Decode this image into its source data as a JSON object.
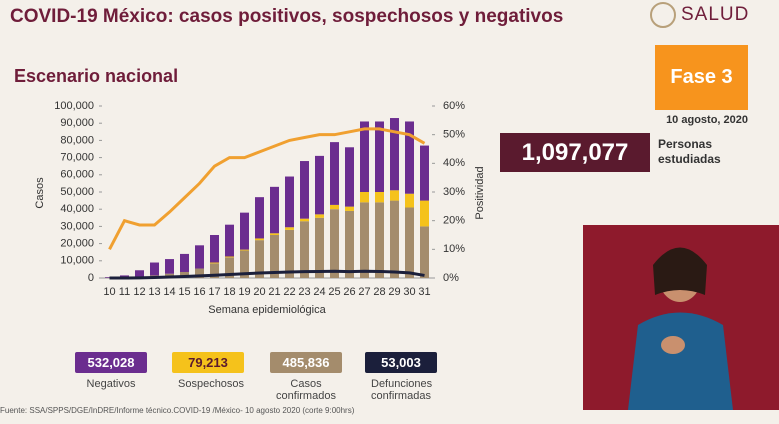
{
  "header": {
    "title": "COVID-19 México: casos positivos, sospechosos y negativos",
    "logo": "SALUD",
    "subtitle": "Escenario nacional",
    "phase": "Fase 3",
    "date": "10 agosto, 2020",
    "people_value": "1,097,077",
    "people_label": "Personas estudiadas",
    "source": "Fuente: SSA/SPPS/DGE/InDRE/Informe técnico.COVID-19 /México- 10 agosto 2020 (corte 9:00hrs)"
  },
  "chart_data": {
    "type": "bar",
    "stacked": true,
    "x_label": "Semana epidemiológica",
    "y_label": "Casos",
    "y2_label": "Positividad",
    "categories": [
      "10",
      "11",
      "12",
      "13",
      "14",
      "15",
      "16",
      "17",
      "18",
      "19",
      "20",
      "21",
      "22",
      "23",
      "24",
      "25",
      "26",
      "27",
      "28",
      "29",
      "30",
      "31"
    ],
    "ylim": [
      0,
      100000
    ],
    "yticks": [
      0,
      {
        "value": 10000,
        "label": "10,000"
      },
      {
        "value": 20000,
        "label": "20,000"
      },
      {
        "value": 30000,
        "label": "30,000"
      },
      {
        "value": 40000,
        "label": "40,000"
      },
      {
        "value": 50000,
        "label": "50,000"
      },
      {
        "value": 60000,
        "label": "60,000"
      },
      {
        "value": 70000,
        "label": "70,000"
      },
      {
        "value": 80000,
        "label": "80,000"
      },
      {
        "value": 90000,
        "label": "90,000"
      },
      {
        "value": 100000,
        "label": "100,000"
      }
    ],
    "y2lim": [
      0,
      60
    ],
    "y2ticks": [
      {
        "value": 0,
        "label": "0%"
      },
      {
        "value": 10,
        "label": "10%"
      },
      {
        "value": 20,
        "label": "20%"
      },
      {
        "value": 30,
        "label": "30%"
      },
      {
        "value": 40,
        "label": "40%"
      },
      {
        "value": 50,
        "label": "50%"
      },
      {
        "value": 60,
        "label": "60%"
      }
    ],
    "series": [
      {
        "name": "Casos confirmados",
        "kind": "bar",
        "color": "#a48c6c",
        "total": 485836,
        "total_label": "485,836",
        "values": [
          100,
          300,
          800,
          1500,
          2500,
          3500,
          5500,
          8500,
          12000,
          16000,
          22000,
          25000,
          28000,
          33000,
          35000,
          40000,
          39000,
          44000,
          44000,
          45000,
          41000,
          30000
        ]
      },
      {
        "name": "Sospechosos",
        "kind": "bar",
        "color": "#f5c21b",
        "total": 79213,
        "total_label": "79,213",
        "values": [
          0,
          0,
          0,
          0,
          0,
          0,
          0,
          500,
          500,
          500,
          1000,
          1000,
          1500,
          1500,
          2000,
          2500,
          2500,
          6000,
          6000,
          6000,
          8000,
          15000
        ]
      },
      {
        "name": "Negativos",
        "kind": "bar",
        "color": "#6b2d8f",
        "total": 532028,
        "total_label": "532,028",
        "values": [
          400,
          1200,
          3700,
          7500,
          8500,
          10500,
          13500,
          16000,
          18500,
          21500,
          24000,
          27000,
          29500,
          33500,
          34000,
          36500,
          34500,
          41000,
          41000,
          42000,
          42000,
          32000
        ]
      },
      {
        "name": "Defunciones confirmadas",
        "kind": "line",
        "color": "#1b1f3b",
        "total": 53003,
        "total_label": "53,003",
        "values": [
          0,
          0,
          100,
          300,
          600,
          900,
          1200,
          1600,
          2000,
          2500,
          2900,
          3200,
          3500,
          3700,
          3800,
          3900,
          3700,
          3900,
          3800,
          3500,
          3000,
          1500
        ]
      },
      {
        "kind": "line",
        "axis": "y2",
        "color": "#f0a030",
        "values": [
          10,
          20,
          18.5,
          18.5,
          23,
          28,
          33,
          39,
          42,
          42,
          44,
          46,
          48,
          49,
          50,
          50,
          51,
          52,
          52,
          51,
          50,
          47
        ]
      }
    ]
  }
}
